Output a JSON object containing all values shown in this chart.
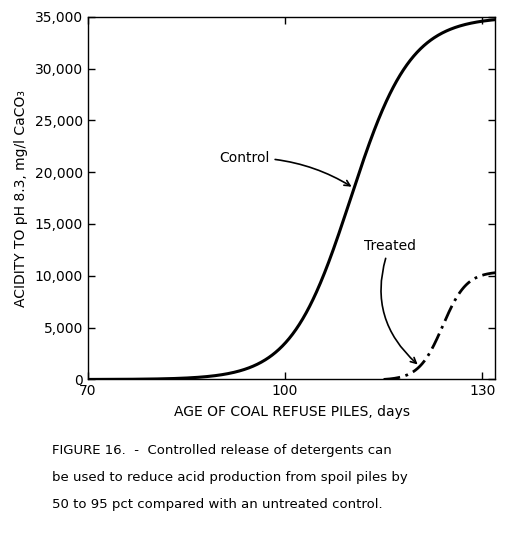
{
  "title": "",
  "xlabel": "AGE OF COAL REFUSE PILES, days",
  "ylabel": "ACIDITY TO pH 8.3, mg/l CaCO₃",
  "xlim": [
    70,
    132
  ],
  "ylim": [
    0,
    35000
  ],
  "xticks": [
    70,
    100,
    130
  ],
  "yticks": [
    0,
    5000,
    10000,
    15000,
    20000,
    25000,
    30000,
    35000
  ],
  "ytick_labels": [
    "0",
    "5,000",
    "10,000",
    "15,000",
    "20,000",
    "25,000",
    "30,000",
    "35,000"
  ],
  "caption_line1": "FIGURE 16.  -  Controlled release of detergents can",
  "caption_line2": "be used to reduce acid production from spoil piles by",
  "caption_line3": "50 to 95 pct compared with an untreated control.",
  "control_label": "Control",
  "treated_label": "Treated",
  "line_color": "#000000",
  "background_color": "#ffffff",
  "control_inflection": 110,
  "control_steepness": 0.22,
  "control_max": 35000,
  "treated_start_x": 115,
  "treated_inflection": 124,
  "treated_steepness": 0.55,
  "treated_max": 10500
}
